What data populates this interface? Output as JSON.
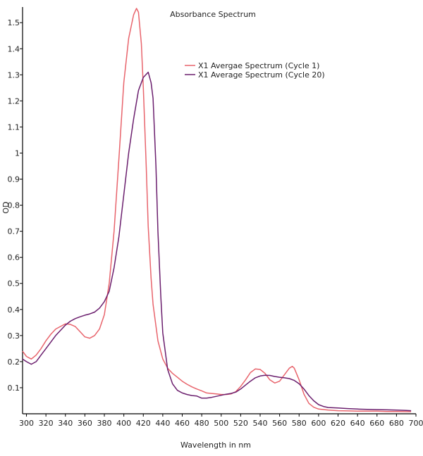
{
  "chart_data": {
    "type": "line",
    "title": "Absorbance Spectrum",
    "xlabel": "Wavelength in nm",
    "ylabel": "OD",
    "xlim": [
      296,
      700
    ],
    "ylim": [
      0,
      1.56
    ],
    "xticks": [
      300,
      320,
      340,
      360,
      380,
      400,
      420,
      440,
      460,
      480,
      500,
      520,
      540,
      560,
      580,
      600,
      620,
      640,
      660,
      680,
      700
    ],
    "yticks": [
      0.1,
      0.2,
      0.3,
      0.4,
      0.5,
      0.6,
      0.7,
      0.8,
      0.9,
      1,
      1.1,
      1.2,
      1.3,
      1.4,
      1.5
    ],
    "ytick_labels": [
      "0.1",
      "0.2",
      "0.3",
      "0.4",
      "0.5",
      "0.6",
      "0.7",
      "0.8",
      "0.9",
      "1",
      "1.1",
      "1.2",
      "1.3",
      "1.4",
      "1.5"
    ],
    "grid": false,
    "legend_position": "top-right",
    "series": [
      {
        "name": "X1 Avergae Spectrum (Cycle 1)",
        "color": "#e8646c",
        "x": [
          296,
          300,
          305,
          310,
          315,
          320,
          325,
          330,
          335,
          340,
          345,
          350,
          355,
          360,
          365,
          370,
          375,
          380,
          385,
          390,
          395,
          400,
          405,
          410,
          413,
          415,
          418,
          420,
          423,
          425,
          428,
          430,
          435,
          440,
          445,
          450,
          455,
          460,
          465,
          470,
          475,
          480,
          485,
          490,
          495,
          500,
          505,
          510,
          515,
          520,
          525,
          530,
          535,
          540,
          545,
          550,
          555,
          560,
          565,
          570,
          573,
          575,
          580,
          585,
          590,
          595,
          600,
          610,
          620,
          630,
          640,
          650,
          660,
          670,
          680,
          690,
          695
        ],
        "y": [
          0.24,
          0.22,
          0.21,
          0.225,
          0.25,
          0.28,
          0.305,
          0.325,
          0.335,
          0.345,
          0.343,
          0.335,
          0.315,
          0.295,
          0.29,
          0.3,
          0.325,
          0.38,
          0.5,
          0.7,
          0.98,
          1.27,
          1.44,
          1.53,
          1.555,
          1.54,
          1.42,
          1.25,
          0.95,
          0.72,
          0.52,
          0.42,
          0.28,
          0.21,
          0.175,
          0.155,
          0.14,
          0.125,
          0.113,
          0.103,
          0.095,
          0.088,
          0.08,
          0.078,
          0.076,
          0.074,
          0.074,
          0.076,
          0.085,
          0.105,
          0.13,
          0.158,
          0.172,
          0.17,
          0.155,
          0.13,
          0.118,
          0.125,
          0.15,
          0.175,
          0.182,
          0.175,
          0.13,
          0.075,
          0.04,
          0.025,
          0.018,
          0.014,
          0.012,
          0.011,
          0.01,
          0.01,
          0.01,
          0.009,
          0.009,
          0.008,
          0.008
        ]
      },
      {
        "name": "X1 Average Spectrum (Cycle 20)",
        "color": "#6b1f6e",
        "x": [
          296,
          300,
          305,
          310,
          315,
          320,
          325,
          330,
          335,
          340,
          345,
          350,
          355,
          360,
          365,
          370,
          375,
          380,
          385,
          390,
          395,
          400,
          405,
          410,
          415,
          420,
          425,
          428,
          430,
          433,
          435,
          438,
          440,
          445,
          450,
          455,
          460,
          465,
          470,
          475,
          480,
          485,
          490,
          495,
          500,
          505,
          510,
          515,
          520,
          525,
          530,
          535,
          540,
          545,
          550,
          555,
          560,
          565,
          570,
          575,
          580,
          585,
          590,
          595,
          600,
          605,
          610,
          620,
          630,
          640,
          650,
          660,
          670,
          680,
          690,
          695
        ],
        "y": [
          0.21,
          0.2,
          0.19,
          0.2,
          0.225,
          0.25,
          0.275,
          0.3,
          0.32,
          0.34,
          0.355,
          0.365,
          0.372,
          0.378,
          0.383,
          0.39,
          0.405,
          0.43,
          0.47,
          0.56,
          0.68,
          0.84,
          1.0,
          1.13,
          1.24,
          1.29,
          1.31,
          1.27,
          1.21,
          0.95,
          0.7,
          0.45,
          0.31,
          0.17,
          0.115,
          0.09,
          0.08,
          0.074,
          0.07,
          0.068,
          0.06,
          0.06,
          0.063,
          0.067,
          0.071,
          0.075,
          0.078,
          0.083,
          0.095,
          0.11,
          0.125,
          0.138,
          0.145,
          0.148,
          0.147,
          0.143,
          0.14,
          0.138,
          0.135,
          0.128,
          0.115,
          0.095,
          0.07,
          0.05,
          0.035,
          0.028,
          0.024,
          0.022,
          0.02,
          0.018,
          0.017,
          0.016,
          0.015,
          0.014,
          0.013,
          0.012
        ]
      }
    ]
  }
}
